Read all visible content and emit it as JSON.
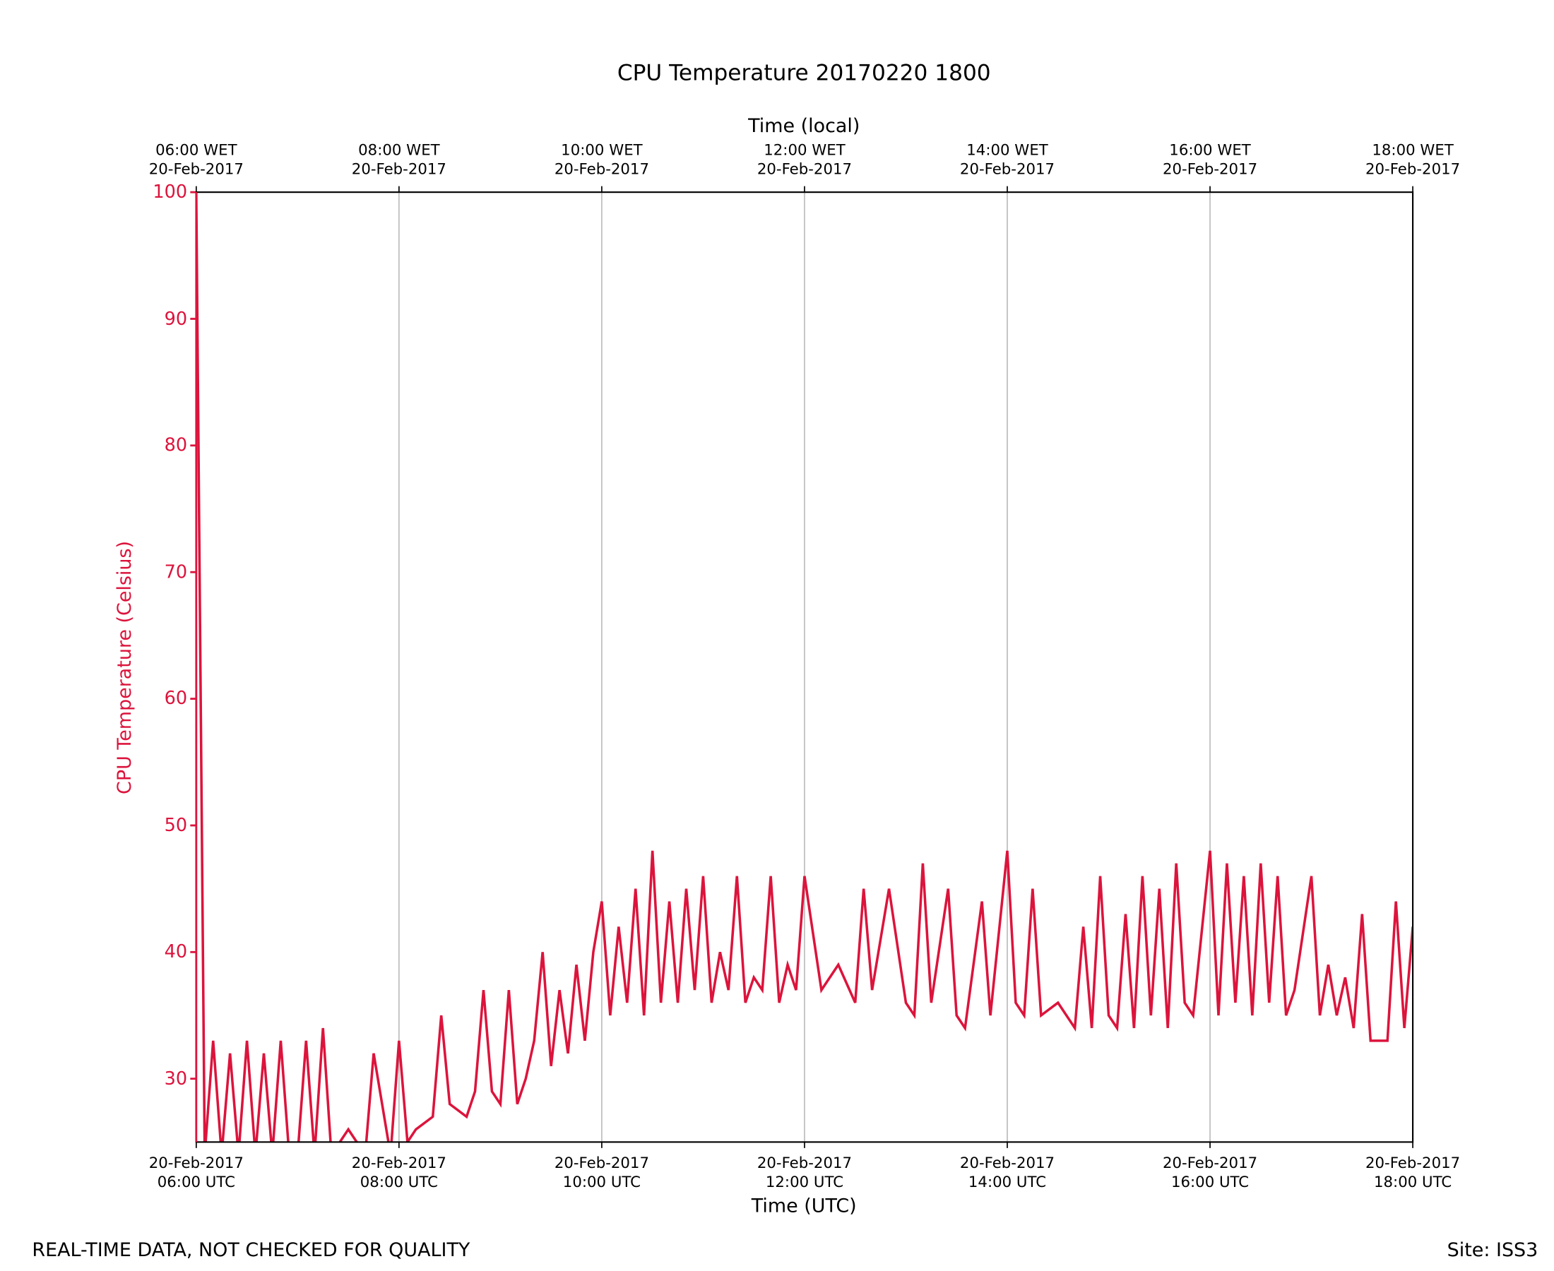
{
  "chart_data": {
    "type": "line",
    "title": "CPU Temperature 20170220 1800",
    "x_label": "Time (UTC)",
    "x2_label": "Time (local)",
    "y_label": "CPU Temperature (Celsius)",
    "footer_left": "REAL-TIME DATA, NOT CHECKED FOR QUALITY",
    "footer_right": "Site: ISS3",
    "xlim": [
      "2017-02-20 06:00",
      "2017-02-20 18:00"
    ],
    "xticks": [
      {
        "value": "2017-02-20 06:00",
        "label": "20-Feb-2017\n06:00 UTC"
      },
      {
        "value": "2017-02-20 08:00",
        "label": "20-Feb-2017\n08:00 UTC"
      },
      {
        "value": "2017-02-20 10:00",
        "label": "20-Feb-2017\n10:00 UTC"
      },
      {
        "value": "2017-02-20 12:00",
        "label": "20-Feb-2017\n12:00 UTC"
      },
      {
        "value": "2017-02-20 14:00",
        "label": "20-Feb-2017\n14:00 UTC"
      },
      {
        "value": "2017-02-20 16:00",
        "label": "20-Feb-2017\n16:00 UTC"
      },
      {
        "value": "2017-02-20 18:00",
        "label": "20-Feb-2017\n18:00 UTC"
      }
    ],
    "x2ticks": [
      {
        "value": "2017-02-20 06:00",
        "label": "06:00 WET\n20-Feb-2017"
      },
      {
        "value": "2017-02-20 08:00",
        "label": "08:00 WET\n20-Feb-2017"
      },
      {
        "value": "2017-02-20 10:00",
        "label": "10:00 WET\n20-Feb-2017"
      },
      {
        "value": "2017-02-20 12:00",
        "label": "12:00 WET\n20-Feb-2017"
      },
      {
        "value": "2017-02-20 14:00",
        "label": "14:00 WET\n20-Feb-2017"
      },
      {
        "value": "2017-02-20 16:00",
        "label": "16:00 WET\n20-Feb-2017"
      },
      {
        "value": "2017-02-20 18:00",
        "label": "18:00 WET\n20-Feb-2017"
      }
    ],
    "ylim": [
      25,
      100
    ],
    "yticks": [
      30,
      40,
      50,
      60,
      70,
      80,
      90,
      100
    ],
    "grid": true,
    "series": [
      {
        "name": "CPU Temperature",
        "color": "#dc143c",
        "x": [
          "2017-02-20 06:00",
          "2017-02-20 06:05",
          "2017-02-20 06:10",
          "2017-02-20 06:15",
          "2017-02-20 06:20",
          "2017-02-20 06:25",
          "2017-02-20 06:30",
          "2017-02-20 06:35",
          "2017-02-20 06:40",
          "2017-02-20 06:45",
          "2017-02-20 06:50",
          "2017-02-20 06:55",
          "2017-02-20 07:00",
          "2017-02-20 07:05",
          "2017-02-20 07:10",
          "2017-02-20 07:15",
          "2017-02-20 07:20",
          "2017-02-20 07:30",
          "2017-02-20 07:40",
          "2017-02-20 07:45",
          "2017-02-20 07:55",
          "2017-02-20 08:00",
          "2017-02-20 08:05",
          "2017-02-20 08:10",
          "2017-02-20 08:20",
          "2017-02-20 08:25",
          "2017-02-20 08:30",
          "2017-02-20 08:40",
          "2017-02-20 08:45",
          "2017-02-20 08:50",
          "2017-02-20 08:55",
          "2017-02-20 09:00",
          "2017-02-20 09:05",
          "2017-02-20 09:10",
          "2017-02-20 09:15",
          "2017-02-20 09:20",
          "2017-02-20 09:25",
          "2017-02-20 09:30",
          "2017-02-20 09:35",
          "2017-02-20 09:40",
          "2017-02-20 09:45",
          "2017-02-20 09:50",
          "2017-02-20 09:55",
          "2017-02-20 10:00",
          "2017-02-20 10:05",
          "2017-02-20 10:10",
          "2017-02-20 10:15",
          "2017-02-20 10:20",
          "2017-02-20 10:25",
          "2017-02-20 10:30",
          "2017-02-20 10:35",
          "2017-02-20 10:40",
          "2017-02-20 10:45",
          "2017-02-20 10:50",
          "2017-02-20 10:55",
          "2017-02-20 11:00",
          "2017-02-20 11:05",
          "2017-02-20 11:10",
          "2017-02-20 11:15",
          "2017-02-20 11:20",
          "2017-02-20 11:25",
          "2017-02-20 11:30",
          "2017-02-20 11:35",
          "2017-02-20 11:40",
          "2017-02-20 11:45",
          "2017-02-20 11:50",
          "2017-02-20 11:55",
          "2017-02-20 12:00",
          "2017-02-20 12:10",
          "2017-02-20 12:20",
          "2017-02-20 12:30",
          "2017-02-20 12:35",
          "2017-02-20 12:40",
          "2017-02-20 12:50",
          "2017-02-20 13:00",
          "2017-02-20 13:05",
          "2017-02-20 13:10",
          "2017-02-20 13:15",
          "2017-02-20 13:25",
          "2017-02-20 13:30",
          "2017-02-20 13:35",
          "2017-02-20 13:45",
          "2017-02-20 13:50",
          "2017-02-20 14:00",
          "2017-02-20 14:05",
          "2017-02-20 14:10",
          "2017-02-20 14:15",
          "2017-02-20 14:20",
          "2017-02-20 14:30",
          "2017-02-20 14:40",
          "2017-02-20 14:45",
          "2017-02-20 14:50",
          "2017-02-20 14:55",
          "2017-02-20 15:00",
          "2017-02-20 15:05",
          "2017-02-20 15:10",
          "2017-02-20 15:15",
          "2017-02-20 15:20",
          "2017-02-20 15:25",
          "2017-02-20 15:30",
          "2017-02-20 15:35",
          "2017-02-20 15:40",
          "2017-02-20 15:45",
          "2017-02-20 15:50",
          "2017-02-20 16:00",
          "2017-02-20 16:05",
          "2017-02-20 16:10",
          "2017-02-20 16:15",
          "2017-02-20 16:20",
          "2017-02-20 16:25",
          "2017-02-20 16:30",
          "2017-02-20 16:35",
          "2017-02-20 16:40",
          "2017-02-20 16:45",
          "2017-02-20 16:50",
          "2017-02-20 17:00",
          "2017-02-20 17:05",
          "2017-02-20 17:10",
          "2017-02-20 17:15",
          "2017-02-20 17:20",
          "2017-02-20 17:25",
          "2017-02-20 17:30",
          "2017-02-20 17:35",
          "2017-02-20 17:45",
          "2017-02-20 17:50",
          "2017-02-20 17:55",
          "2017-02-20 18:00"
        ],
        "values": [
          100,
          24,
          33,
          24,
          32,
          24,
          33,
          24,
          32,
          24,
          33,
          24,
          24,
          33,
          24,
          34,
          24,
          26,
          24,
          32,
          24,
          33,
          25,
          26,
          27,
          35,
          28,
          27,
          29,
          37,
          29,
          28,
          37,
          28,
          30,
          33,
          40,
          31,
          37,
          32,
          39,
          33,
          40,
          44,
          35,
          42,
          36,
          45,
          35,
          48,
          36,
          44,
          36,
          45,
          37,
          46,
          36,
          40,
          37,
          46,
          36,
          38,
          37,
          46,
          36,
          39,
          37,
          46,
          37,
          39,
          36,
          45,
          37,
          45,
          36,
          35,
          47,
          36,
          45,
          35,
          34,
          44,
          35,
          48,
          36,
          35,
          45,
          35,
          36,
          34,
          42,
          34,
          46,
          35,
          34,
          43,
          34,
          46,
          35,
          45,
          34,
          47,
          36,
          35,
          48,
          35,
          47,
          36,
          46,
          35,
          47,
          36,
          46,
          35,
          37,
          46,
          35,
          39,
          35,
          38,
          34,
          43,
          33,
          33,
          44,
          34,
          42
        ]
      }
    ]
  }
}
